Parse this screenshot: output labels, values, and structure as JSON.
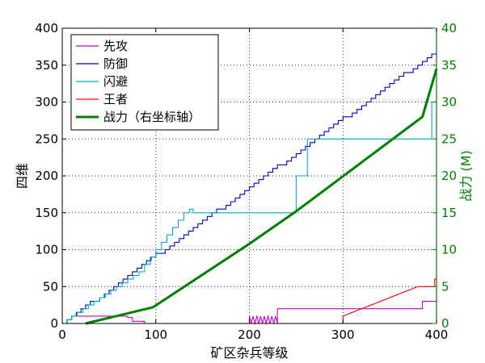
{
  "chart_data": {
    "type": "line",
    "xlabel": "矿区杂兵等级",
    "ylabel_left": "四维",
    "ylabel_right": "战力 (M)",
    "xlim": [
      0,
      400
    ],
    "ylim_left": [
      0,
      400
    ],
    "ylim_right": [
      0,
      40
    ],
    "xticks": [
      0,
      100,
      200,
      300,
      400
    ],
    "yticks_left": [
      0,
      50,
      100,
      150,
      200,
      250,
      300,
      350,
      400
    ],
    "yticks_right": [
      0,
      5,
      10,
      15,
      20,
      25,
      30,
      35,
      40
    ],
    "grid": "dotted",
    "legend_placement": "top-left",
    "series": [
      {
        "name": "先攻",
        "axis": "left",
        "color": "#cc00cc",
        "style": "thin",
        "x": [
          0,
          5,
          5,
          10,
          10,
          70,
          70,
          75,
          75,
          88,
          88,
          200,
          200,
          202,
          204,
          206,
          208,
          210,
          212,
          214,
          216,
          218,
          220,
          222,
          224,
          226,
          228,
          230,
          230,
          385,
          385,
          400
        ],
        "y": [
          0,
          0,
          5,
          5,
          10,
          10,
          8,
          8,
          3,
          3,
          0,
          0,
          10,
          0,
          10,
          0,
          10,
          0,
          10,
          0,
          10,
          0,
          10,
          0,
          10,
          0,
          10,
          0,
          20,
          20,
          30,
          30
        ]
      },
      {
        "name": "防御",
        "axis": "left",
        "color": "#0000cc",
        "style": "thin",
        "x": [
          0,
          400
        ],
        "y": [
          0,
          370
        ],
        "step": 5
      },
      {
        "name": "闪避",
        "axis": "left",
        "color": "#00b3b3",
        "style": "thin",
        "x": [
          0,
          5,
          5,
          10,
          10,
          16,
          16,
          22,
          22,
          28,
          28,
          34,
          34,
          40,
          40,
          46,
          46,
          52,
          52,
          58,
          58,
          64,
          64,
          70,
          70,
          76,
          76,
          82,
          82,
          88,
          88,
          94,
          94,
          100,
          100,
          106,
          106,
          112,
          112,
          118,
          118,
          124,
          124,
          130,
          130,
          136,
          136,
          140,
          140,
          250,
          250,
          262,
          262,
          395,
          395,
          400
        ],
        "y": [
          0,
          0,
          5,
          5,
          10,
          10,
          15,
          15,
          20,
          20,
          25,
          25,
          30,
          30,
          35,
          35,
          40,
          40,
          45,
          45,
          50,
          50,
          55,
          55,
          60,
          60,
          65,
          65,
          70,
          70,
          80,
          80,
          90,
          90,
          100,
          100,
          110,
          110,
          120,
          120,
          130,
          130,
          140,
          140,
          150,
          150,
          155,
          155,
          150,
          150,
          200,
          200,
          250,
          250,
          300,
          300
        ]
      },
      {
        "name": "王者",
        "axis": "left",
        "color": "#ff0000",
        "style": "thin",
        "x": [
          0,
          300,
          300,
          380,
          398,
          398,
          400
        ],
        "y": [
          0,
          0,
          10,
          50,
          50,
          60,
          60
        ]
      },
      {
        "name": "战力（右坐标轴）",
        "axis": "right",
        "color": "#008000",
        "style": "thick",
        "x": [
          25,
          97,
          200,
          250,
          385,
          400
        ],
        "y": [
          0,
          2.2,
          10.8,
          15.2,
          28,
          34.5
        ]
      }
    ]
  }
}
